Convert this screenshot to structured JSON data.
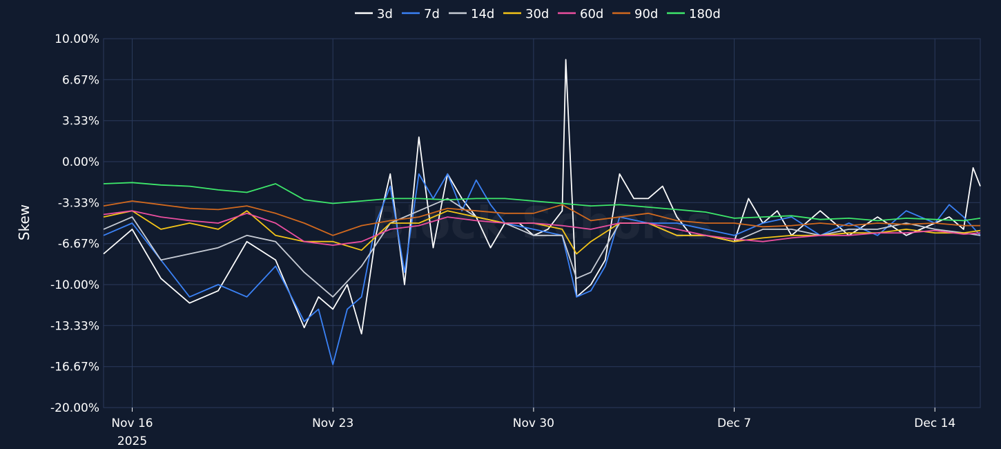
{
  "chart_data": {
    "type": "line",
    "ylabel": "Skew",
    "xlabel": "",
    "ylim": [
      -20,
      10
    ],
    "grid": true,
    "legend_position": "top-center",
    "watermark": "Block Scholes",
    "y_ticks": [
      {
        "value": 10,
        "label": "10.00%"
      },
      {
        "value": 6.67,
        "label": "6.67%"
      },
      {
        "value": 3.33,
        "label": "3.33%"
      },
      {
        "value": 0,
        "label": "0.00%"
      },
      {
        "value": -3.33,
        "label": "-3.33%"
      },
      {
        "value": -6.67,
        "label": "-6.67%"
      },
      {
        "value": -10,
        "label": "-10.00%"
      },
      {
        "value": -13.33,
        "label": "-13.33%"
      },
      {
        "value": -16.67,
        "label": "-16.67%"
      },
      {
        "value": -20,
        "label": "-20.00%"
      }
    ],
    "xlim": [
      "2025-11-15",
      "2025-12-15T14:00"
    ],
    "x_ticks": [
      {
        "date": "2025-11-16",
        "label": "Nov 16",
        "sublabel": "2025"
      },
      {
        "date": "2025-11-23",
        "label": "Nov 23"
      },
      {
        "date": "2025-11-30",
        "label": "Nov 30"
      },
      {
        "date": "2025-12-07",
        "label": "Dec 7"
      },
      {
        "date": "2025-12-14",
        "label": "Dec 14"
      }
    ],
    "series": [
      {
        "name": "3d",
        "color": "#ffffff",
        "x": [
          "2025-11-15",
          "2025-11-16",
          "2025-11-17",
          "2025-11-18",
          "2025-11-19",
          "2025-11-20",
          "2025-11-21",
          "2025-11-22",
          "2025-11-22T12:00",
          "2025-11-23",
          "2025-11-23T12:00",
          "2025-11-24",
          "2025-11-24T12:00",
          "2025-11-25",
          "2025-11-25T12:00",
          "2025-11-26",
          "2025-11-26T12:00",
          "2025-11-27",
          "2025-11-27T12:00",
          "2025-11-28",
          "2025-11-28T12:00",
          "2025-11-29",
          "2025-11-29T12:00",
          "2025-11-30",
          "2025-11-30T12:00",
          "2025-12-01",
          "2025-12-01T03:00",
          "2025-12-01T12:00",
          "2025-12-02",
          "2025-12-02T12:00",
          "2025-12-03",
          "2025-12-03T12:00",
          "2025-12-04",
          "2025-12-04T12:00",
          "2025-12-05",
          "2025-12-05T12:00",
          "2025-12-06",
          "2025-12-07",
          "2025-12-07T12:00",
          "2025-12-08",
          "2025-12-08T12:00",
          "2025-12-09",
          "2025-12-10",
          "2025-12-11",
          "2025-12-12",
          "2025-12-13",
          "2025-12-14",
          "2025-12-14T12:00",
          "2025-12-15",
          "2025-12-15T08:00",
          "2025-12-15T14:00"
        ],
        "y": [
          -7.5,
          -5.5,
          -9.5,
          -11.5,
          -10.5,
          -6.5,
          -8,
          -13.5,
          -11,
          -12,
          -10,
          -14,
          -6,
          -1,
          -10,
          2,
          -7,
          -1,
          -3,
          -4.5,
          -7,
          -5,
          -5,
          -6,
          -5.5,
          -4,
          8.3,
          -11,
          -10,
          -8,
          -1,
          -3,
          -3,
          -2,
          -4.5,
          -6,
          -6,
          -6.5,
          -3,
          -5,
          -4,
          -6,
          -4,
          -6,
          -4.5,
          -6,
          -5,
          -4.5,
          -5.5,
          -0.5,
          -2
        ]
      },
      {
        "name": "7d",
        "color": "#3b82f6",
        "x": [
          "2025-11-15",
          "2025-11-16",
          "2025-11-17",
          "2025-11-18",
          "2025-11-19",
          "2025-11-20",
          "2025-11-21",
          "2025-11-22",
          "2025-11-22T12:00",
          "2025-11-23",
          "2025-11-23T12:00",
          "2025-11-24",
          "2025-11-24T12:00",
          "2025-11-25",
          "2025-11-25T12:00",
          "2025-11-26",
          "2025-11-26T12:00",
          "2025-11-27",
          "2025-11-27T12:00",
          "2025-11-28",
          "2025-11-28T12:00",
          "2025-11-29",
          "2025-11-30",
          "2025-12-01",
          "2025-12-01T12:00",
          "2025-12-02",
          "2025-12-02T12:00",
          "2025-12-03",
          "2025-12-04",
          "2025-12-05",
          "2025-12-06",
          "2025-12-07",
          "2025-12-08",
          "2025-12-09",
          "2025-12-10",
          "2025-12-11",
          "2025-12-12",
          "2025-12-13",
          "2025-12-14",
          "2025-12-14T12:00",
          "2025-12-15",
          "2025-12-15T14:00"
        ],
        "y": [
          -6,
          -5,
          -8,
          -11,
          -10,
          -11,
          -8.5,
          -13,
          -12,
          -16.5,
          -12,
          -11,
          -5,
          -2,
          -9,
          -1,
          -3,
          -1,
          -4,
          -1.5,
          -3.5,
          -5,
          -5.5,
          -6,
          -11,
          -10.5,
          -8.5,
          -4.5,
          -5,
          -5,
          -5.5,
          -6,
          -5,
          -4.5,
          -6,
          -5,
          -6,
          -4,
          -5,
          -3.5,
          -4.5,
          -6
        ]
      },
      {
        "name": "14d",
        "color": "#c8cdd6",
        "x": [
          "2025-11-15",
          "2025-11-16",
          "2025-11-17",
          "2025-11-18",
          "2025-11-19",
          "2025-11-20",
          "2025-11-21",
          "2025-11-22",
          "2025-11-23",
          "2025-11-24",
          "2025-11-25",
          "2025-11-26",
          "2025-11-27",
          "2025-11-28",
          "2025-11-29",
          "2025-11-30",
          "2025-12-01",
          "2025-12-01T12:00",
          "2025-12-02",
          "2025-12-03",
          "2025-12-04",
          "2025-12-05",
          "2025-12-06",
          "2025-12-07",
          "2025-12-08",
          "2025-12-09",
          "2025-12-10",
          "2025-12-11",
          "2025-12-12",
          "2025-12-13",
          "2025-12-14",
          "2025-12-15",
          "2025-12-15T14:00"
        ],
        "y": [
          -5.5,
          -4.5,
          -8,
          -7.5,
          -7,
          -6,
          -6.5,
          -9,
          -11,
          -8.5,
          -5,
          -4,
          -3,
          -4.5,
          -5,
          -6,
          -6,
          -9.5,
          -9,
          -5,
          -5,
          -6,
          -6,
          -6.5,
          -5.5,
          -5.5,
          -6,
          -5.5,
          -5.5,
          -5,
          -5.5,
          -5.8,
          -6
        ]
      },
      {
        "name": "30d",
        "color": "#f5c518",
        "x": [
          "2025-11-15",
          "2025-11-16",
          "2025-11-17",
          "2025-11-18",
          "2025-11-19",
          "2025-11-20",
          "2025-11-21",
          "2025-11-22",
          "2025-11-23",
          "2025-11-24",
          "2025-11-25",
          "2025-11-26",
          "2025-11-27",
          "2025-11-28",
          "2025-11-29",
          "2025-11-30",
          "2025-12-01",
          "2025-12-01T12:00",
          "2025-12-02",
          "2025-12-03",
          "2025-12-04",
          "2025-12-05",
          "2025-12-06",
          "2025-12-07",
          "2025-12-08",
          "2025-12-09",
          "2025-12-10",
          "2025-12-11",
          "2025-12-12",
          "2025-12-13",
          "2025-12-14",
          "2025-12-15",
          "2025-12-15T14:00"
        ],
        "y": [
          -4.5,
          -4,
          -5.5,
          -5,
          -5.5,
          -4,
          -6,
          -6.5,
          -6.5,
          -7.2,
          -5,
          -5,
          -4,
          -4.5,
          -5,
          -5,
          -5.5,
          -7.5,
          -6.5,
          -5,
          -5,
          -6,
          -6,
          -6.5,
          -6.2,
          -6,
          -6,
          -5.8,
          -5.8,
          -5.5,
          -5.8,
          -5.8,
          -5.6
        ]
      },
      {
        "name": "60d",
        "color": "#ec4fa0",
        "x": [
          "2025-11-15",
          "2025-11-16",
          "2025-11-17",
          "2025-11-18",
          "2025-11-19",
          "2025-11-20",
          "2025-11-21",
          "2025-11-22",
          "2025-11-23",
          "2025-11-24",
          "2025-11-25",
          "2025-11-26",
          "2025-11-27",
          "2025-11-28",
          "2025-11-29",
          "2025-11-30",
          "2025-12-01",
          "2025-12-02",
          "2025-12-03",
          "2025-12-04",
          "2025-12-05",
          "2025-12-06",
          "2025-12-07",
          "2025-12-08",
          "2025-12-09",
          "2025-12-10",
          "2025-12-11",
          "2025-12-12",
          "2025-12-13",
          "2025-12-14",
          "2025-12-15",
          "2025-12-15T14:00"
        ],
        "y": [
          -4.3,
          -4,
          -4.5,
          -4.8,
          -5,
          -4.2,
          -5,
          -6.5,
          -6.8,
          -6.5,
          -5.5,
          -5.2,
          -4.5,
          -4.8,
          -5,
          -5,
          -5.2,
          -5.5,
          -5,
          -5,
          -5.5,
          -6,
          -6.3,
          -6.5,
          -6.2,
          -6,
          -6,
          -5.8,
          -5.8,
          -5.6,
          -5.9,
          -5.8
        ]
      },
      {
        "name": "90d",
        "color": "#d2691e",
        "x": [
          "2025-11-15",
          "2025-11-16",
          "2025-11-17",
          "2025-11-18",
          "2025-11-19",
          "2025-11-20",
          "2025-11-21",
          "2025-11-22",
          "2025-11-23",
          "2025-11-24",
          "2025-11-25",
          "2025-11-26",
          "2025-11-27",
          "2025-11-28",
          "2025-11-29",
          "2025-11-30",
          "2025-12-01",
          "2025-12-02",
          "2025-12-03",
          "2025-12-04",
          "2025-12-05",
          "2025-12-06",
          "2025-12-07",
          "2025-12-08",
          "2025-12-09",
          "2025-12-10",
          "2025-12-11",
          "2025-12-12",
          "2025-12-13",
          "2025-12-14",
          "2025-12-15",
          "2025-12-15T14:00"
        ],
        "y": [
          -3.6,
          -3.2,
          -3.5,
          -3.8,
          -3.9,
          -3.6,
          -4.2,
          -5,
          -6,
          -5.2,
          -4.8,
          -4.5,
          -3.8,
          -4,
          -4.2,
          -4.2,
          -3.5,
          -4.8,
          -4.5,
          -4.2,
          -4.8,
          -5,
          -5,
          -5.3,
          -5.2,
          -5,
          -5.2,
          -5,
          -5.1,
          -5,
          -5.2,
          -5.2
        ]
      },
      {
        "name": "180d",
        "color": "#3ee86b",
        "x": [
          "2025-11-15",
          "2025-11-16",
          "2025-11-17",
          "2025-11-18",
          "2025-11-19",
          "2025-11-20",
          "2025-11-21",
          "2025-11-22",
          "2025-11-23",
          "2025-11-24",
          "2025-11-25",
          "2025-11-26",
          "2025-11-27",
          "2025-11-28",
          "2025-11-29",
          "2025-11-30",
          "2025-12-01",
          "2025-12-02",
          "2025-12-03",
          "2025-12-04",
          "2025-12-05",
          "2025-12-06",
          "2025-12-07",
          "2025-12-08",
          "2025-12-09",
          "2025-12-10",
          "2025-12-11",
          "2025-12-12",
          "2025-12-13",
          "2025-12-14",
          "2025-12-15",
          "2025-12-15T14:00"
        ],
        "y": [
          -1.8,
          -1.7,
          -1.9,
          -2,
          -2.3,
          -2.5,
          -1.8,
          -3.1,
          -3.4,
          -3.2,
          -3,
          -3,
          -3.1,
          -3,
          -3,
          -3.2,
          -3.4,
          -3.6,
          -3.5,
          -3.7,
          -3.9,
          -4.1,
          -4.6,
          -4.5,
          -4.4,
          -4.7,
          -4.6,
          -4.8,
          -4.6,
          -4.7,
          -4.8,
          -4.6
        ]
      }
    ]
  }
}
